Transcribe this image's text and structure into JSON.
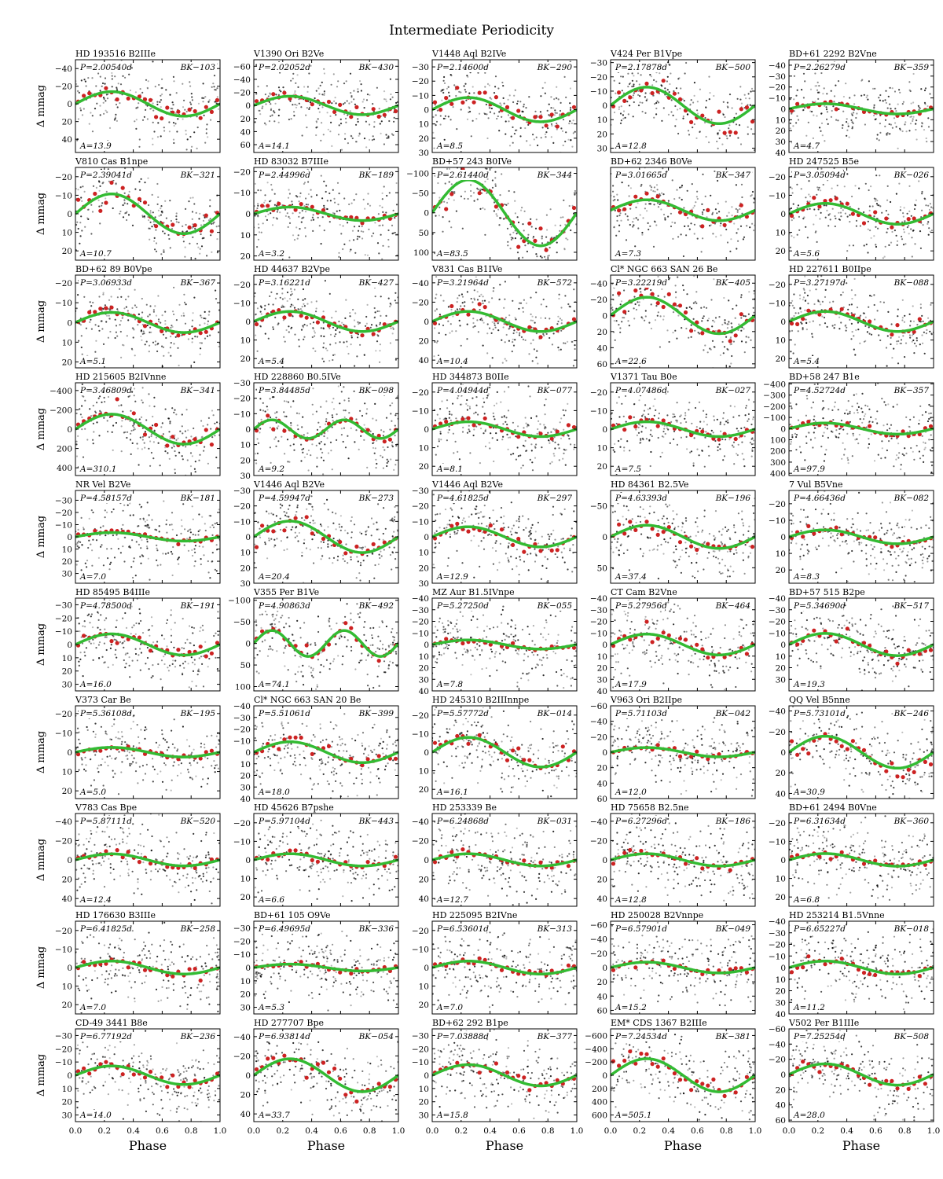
{
  "figure": {
    "title": "Intermediate Periodicity",
    "ylabel": "Δ mmag",
    "xlabel": "Phase",
    "x_ticks": [
      "0.0",
      "0.2",
      "0.4",
      "0.6",
      "0.8",
      "1.0"
    ],
    "colors": {
      "points": "#000000",
      "binned": "#cc2222",
      "fit": "#33bb33",
      "frame": "#000000"
    }
  },
  "chart_data": [
    {
      "type": "scatter",
      "title": "HD 193516  B2IIIe",
      "period": "P=2.00540d",
      "id": "BK−103",
      "amp": "A=13.9",
      "A": 13.9,
      "harm": 1,
      "yticks": [
        -40,
        -20,
        0,
        20,
        40
      ],
      "ylim": [
        -50,
        55
      ]
    },
    {
      "type": "scatter",
      "title": "V1390 Ori  B2Ve",
      "period": "P=2.02052d",
      "id": "BK−430",
      "amp": "A=14.1",
      "A": 14.1,
      "harm": 1,
      "yticks": [
        -60,
        -40,
        -20,
        0,
        20,
        40,
        60
      ],
      "ylim": [
        -70,
        72
      ]
    },
    {
      "type": "scatter",
      "title": "V1448 Aql  B2IVe",
      "period": "P=2.14600d",
      "id": "BK−290",
      "amp": "A=8.5",
      "A": 8.5,
      "harm": 1,
      "yticks": [
        -30,
        -20,
        -10,
        0,
        10,
        20,
        30
      ],
      "ylim": [
        -35,
        30
      ]
    },
    {
      "type": "scatter",
      "title": "V424 Per  B1Vpe",
      "period": "P=2.17878d",
      "id": "BK−500",
      "amp": "A=12.8",
      "A": 12.8,
      "harm": 1,
      "yticks": [
        -30,
        -20,
        -10,
        0,
        10,
        20,
        30
      ],
      "ylim": [
        -32,
        33
      ]
    },
    {
      "type": "scatter",
      "title": "BD+61 2292  B2Vne",
      "period": "P=2.26279d",
      "id": "BK−359",
      "amp": "A=4.7",
      "A": 4.7,
      "harm": 1,
      "yticks": [
        -40,
        -30,
        -20,
        -10,
        0,
        10,
        20,
        30,
        40
      ],
      "ylim": [
        -45,
        40
      ]
    },
    {
      "type": "scatter",
      "title": "V810 Cas  B1npe",
      "period": "P=2.39041d",
      "id": "BK−321",
      "amp": "A=10.7",
      "A": 10.7,
      "harm": 1,
      "yticks": [
        -20,
        -10,
        0,
        10,
        20
      ],
      "ylim": [
        -25,
        25
      ]
    },
    {
      "type": "scatter",
      "title": "HD 83032  B7IIIe",
      "period": "P=2.44996d",
      "id": "BK−189",
      "amp": "A=3.2",
      "A": 3.2,
      "harm": 1,
      "yticks": [
        -20,
        -10,
        0,
        10,
        20
      ],
      "ylim": [
        -22,
        22
      ]
    },
    {
      "type": "scatter",
      "title": "BD+57 243  B0IVe",
      "period": "P=2.61440d",
      "id": "BK−344",
      "amp": "A=83.5",
      "A": 83.5,
      "harm": 1,
      "yticks": [
        -100,
        -50,
        0,
        50,
        100
      ],
      "ylim": [
        -115,
        120
      ]
    },
    {
      "type": "scatter",
      "title": "BD+62 2346  B0Ve",
      "period": "P=3.01665d",
      "id": "BK−347",
      "amp": "A=7.3",
      "A": 7.3,
      "harm": 1,
      "yticks": [],
      "ylim": [
        -30,
        35
      ]
    },
    {
      "type": "scatter",
      "title": "HD 247525  B5e",
      "period": "P=3.05094d",
      "id": "BK−026",
      "amp": "A=5.6",
      "A": 5.6,
      "harm": 1,
      "yticks": [
        -20,
        -10,
        0,
        10,
        20
      ],
      "ylim": [
        -25,
        25
      ]
    },
    {
      "type": "scatter",
      "title": "BD+62 89  B0Vpe",
      "period": "P=3.06933d",
      "id": "BK−367",
      "amp": "A=5.1",
      "A": 5.1,
      "harm": 1,
      "yticks": [
        -20,
        -10,
        0,
        10,
        20
      ],
      "ylim": [
        -24,
        23
      ]
    },
    {
      "type": "scatter",
      "title": "HD 44637  B2Vpe",
      "period": "P=3.16221d",
      "id": "BK−427",
      "amp": "A=5.4",
      "A": 5.4,
      "harm": 1,
      "yticks": [
        -20,
        -10,
        0,
        10,
        20
      ],
      "ylim": [
        -25,
        25
      ]
    },
    {
      "type": "scatter",
      "title": "V831 Cas  B1IVe",
      "period": "P=3.21964d",
      "id": "BK−572",
      "amp": "A=10.4",
      "A": 10.4,
      "harm": 1,
      "yticks": [
        -40,
        -20,
        0,
        20,
        40
      ],
      "ylim": [
        -48,
        48
      ]
    },
    {
      "type": "scatter",
      "title": "Cl* NGC 663 SAN 26  Be",
      "period": "P=3.22219d",
      "id": "BK−405",
      "amp": "A=22.6",
      "A": 22.6,
      "harm": 1,
      "yticks": [
        -40,
        -20,
        0,
        20,
        40,
        60
      ],
      "ylim": [
        -50,
        65
      ]
    },
    {
      "type": "scatter",
      "title": "HD 227611  B0IIpe",
      "period": "P=3.27197d",
      "id": "BK−088",
      "amp": "A=5.4",
      "A": 5.4,
      "harm": 1,
      "yticks": [
        -20,
        -10,
        0,
        10,
        20
      ],
      "ylim": [
        -25,
        25
      ]
    },
    {
      "type": "scatter",
      "title": "HD 215605  B2IVnne",
      "period": "P=3.46809d",
      "id": "BK−341",
      "amp": "A=310.1",
      "A": 155,
      "harm": 1,
      "yticks": [
        -400,
        -200,
        0,
        200,
        400
      ],
      "ylim": [
        -480,
        480
      ]
    },
    {
      "type": "scatter",
      "title": "HD 228860  B0.5IVe",
      "period": "P=3.84485d",
      "id": "BK−098",
      "amp": "A=9.2",
      "A": 6,
      "harm": 2,
      "yticks": [
        -30,
        -20,
        -10,
        0,
        10,
        20,
        30
      ],
      "ylim": [
        -30,
        30
      ]
    },
    {
      "type": "scatter",
      "title": "HD 344873  B0IIe",
      "period": "P=4.04944d",
      "id": "BK−077",
      "amp": "A=8.1",
      "A": 4,
      "harm": 1,
      "yticks": [
        -20,
        -10,
        0,
        10,
        20
      ],
      "ylim": [
        -25,
        25
      ]
    },
    {
      "type": "scatter",
      "title": "V1371 Tau  B0e",
      "period": "P=4.07486d",
      "id": "BK−027",
      "amp": "A=7.5",
      "A": 4,
      "harm": 1,
      "yticks": [
        -20,
        -10,
        0,
        10,
        20
      ],
      "ylim": [
        -25,
        25
      ]
    },
    {
      "type": "scatter",
      "title": "BD+58 247  B1e",
      "period": "P=4.52724d",
      "id": "BK−357",
      "amp": "A=97.9",
      "A": 50,
      "harm": 1,
      "yticks": [
        -400,
        -300,
        -200,
        -100,
        0,
        100,
        200,
        300,
        400
      ],
      "ylim": [
        -410,
        420
      ]
    },
    {
      "type": "scatter",
      "title": "NR Vel  B2Ve",
      "period": "P=4.58157d",
      "id": "BK−181",
      "amp": "A=7.0",
      "A": 3.5,
      "harm": 1,
      "yticks": [
        -30,
        -20,
        -10,
        0,
        10,
        20,
        30
      ],
      "ylim": [
        -38,
        38
      ]
    },
    {
      "type": "scatter",
      "title": "V1446 Aql  B2Ve",
      "period": "P=4.59947d",
      "id": "BK−273",
      "amp": "A=20.4",
      "A": 10.2,
      "harm": 1,
      "yticks": [
        -30,
        -20,
        -10,
        0,
        10,
        20,
        30
      ],
      "ylim": [
        -30,
        30
      ]
    },
    {
      "type": "scatter",
      "title": "V1446 Aql  B2Ve",
      "period": "P=4.61825d",
      "id": "BK−297",
      "amp": "A=12.9",
      "A": 6.5,
      "harm": 1,
      "yticks": [
        -30,
        -20,
        -10,
        0,
        10,
        20,
        30
      ],
      "ylim": [
        -30,
        30
      ]
    },
    {
      "type": "scatter",
      "title": "HD 84361  B2.5Ve",
      "period": "P=4.63393d",
      "id": "BK−196",
      "amp": "A=37.4",
      "A": 18.7,
      "harm": 1,
      "yticks": [
        -50,
        0,
        50
      ],
      "ylim": [
        -75,
        75
      ]
    },
    {
      "type": "scatter",
      "title": "7 Vul  B5Vne",
      "period": "P=4.66436d",
      "id": "BK−082",
      "amp": "A=8.3",
      "A": 4.2,
      "harm": 1,
      "yticks": [
        -20,
        -10,
        0,
        10,
        20
      ],
      "ylim": [
        -28,
        28
      ]
    },
    {
      "type": "scatter",
      "title": "HD 85495  B4IIIe",
      "period": "P=4.78500d",
      "id": "BK−191",
      "amp": "A=16.0",
      "A": 8,
      "harm": 1,
      "yticks": [
        -30,
        -20,
        -10,
        0,
        10,
        20,
        30
      ],
      "ylim": [
        -35,
        35
      ]
    },
    {
      "type": "scatter",
      "title": "V355 Per  B1Ve",
      "period": "P=4.90863d",
      "id": "BK−492",
      "amp": "A=74.1",
      "A": 30,
      "harm": 2,
      "yticks": [
        -100,
        -50,
        0,
        50,
        100
      ],
      "ylim": [
        -105,
        110
      ]
    },
    {
      "type": "scatter",
      "title": "MZ Aur  B1.5IVnpe",
      "period": "P=5.27250d",
      "id": "BK−055",
      "amp": "A=7.8",
      "A": 3.9,
      "harm": 1,
      "yticks": [
        -40,
        -30,
        -20,
        -10,
        0,
        10,
        20,
        30,
        40
      ],
      "ylim": [
        -40,
        40
      ]
    },
    {
      "type": "scatter",
      "title": "CT Cam  B2Vne",
      "period": "P=5.27956d",
      "id": "BK−464",
      "amp": "A=17.9",
      "A": 9,
      "harm": 1,
      "yticks": [
        -40,
        -30,
        -20,
        -10,
        0,
        10,
        20,
        30,
        40
      ],
      "ylim": [
        -40,
        40
      ]
    },
    {
      "type": "scatter",
      "title": "BD+57 515  B2pe",
      "period": "P=5.34690d",
      "id": "BK−517",
      "amp": "A=19.3",
      "A": 9.6,
      "harm": 1,
      "yticks": [
        -40,
        -30,
        -20,
        -10,
        0,
        10,
        20,
        30
      ],
      "ylim": [
        -40,
        40
      ]
    },
    {
      "type": "scatter",
      "title": "V373 Car  Be",
      "period": "P=5.36108d",
      "id": "BK−195",
      "amp": "A=5.0",
      "A": 2.5,
      "harm": 1,
      "yticks": [
        -20,
        -10,
        0,
        10,
        20
      ],
      "ylim": [
        -24,
        24
      ]
    },
    {
      "type": "scatter",
      "title": "Cl* NGC 663 SAN 20  Be",
      "period": "P=5.51061d",
      "id": "BK−399",
      "amp": "A=18.0",
      "A": 9,
      "harm": 1,
      "yticks": [
        -40,
        -30,
        -20,
        -10,
        0,
        10,
        20,
        30,
        40
      ],
      "ylim": [
        -40,
        40
      ]
    },
    {
      "type": "scatter",
      "title": "HD 245310  B2IIInnpe",
      "period": "P=5.57772d",
      "id": "BK−014",
      "amp": "A=16.1",
      "A": 8,
      "harm": 1,
      "yticks": [
        -20,
        -10,
        0,
        10,
        20
      ],
      "ylim": [
        -25,
        25
      ]
    },
    {
      "type": "scatter",
      "title": "V963 Ori  B2IIpe",
      "period": "P=5.71103d",
      "id": "BK−042",
      "amp": "A=12.0",
      "A": 6,
      "harm": 1,
      "yticks": [
        -60,
        -40,
        -20,
        0,
        20,
        40,
        60
      ],
      "ylim": [
        -60,
        60
      ]
    },
    {
      "type": "scatter",
      "title": "QQ Vel  B5nne",
      "period": "P=5.73101d",
      "id": "BK−246",
      "amp": "A=30.9",
      "A": 15.5,
      "harm": 1,
      "yticks": [
        -40,
        -20,
        0,
        20,
        40
      ],
      "ylim": [
        -45,
        45
      ]
    },
    {
      "type": "scatter",
      "title": "V783 Cas  Bpe",
      "period": "P=5.87111d",
      "id": "BK−520",
      "amp": "A=12.4",
      "A": 6.2,
      "harm": 1,
      "yticks": [
        -40,
        -20,
        0,
        20,
        40
      ],
      "ylim": [
        -48,
        48
      ]
    },
    {
      "type": "scatter",
      "title": "HD 45626  B7pshe",
      "period": "P=5.97104d",
      "id": "BK−443",
      "amp": "A=6.6",
      "A": 3.3,
      "harm": 1,
      "yticks": [
        -20,
        -10,
        0,
        10,
        20
      ],
      "ylim": [
        -25,
        25
      ]
    },
    {
      "type": "scatter",
      "title": "HD 253339  Be",
      "period": "P=6.24868d",
      "id": "BK−031",
      "amp": "A=12.7",
      "A": 6.3,
      "harm": 1,
      "yticks": [
        -40,
        -20,
        0,
        20,
        40
      ],
      "ylim": [
        -48,
        48
      ]
    },
    {
      "type": "scatter",
      "title": "HD 75658  B2.5ne",
      "period": "P=6.27296d",
      "id": "BK−186",
      "amp": "A=12.8",
      "A": 6.4,
      "harm": 1,
      "yticks": [
        -40,
        -20,
        0,
        20,
        40
      ],
      "ylim": [
        -48,
        48
      ]
    },
    {
      "type": "scatter",
      "title": "BD+61 2494  B0Vne",
      "period": "P=6.31634d",
      "id": "BK−360",
      "amp": "A=6.8",
      "A": 3.4,
      "harm": 1,
      "yticks": [
        -20,
        -10,
        0,
        10,
        20
      ],
      "ylim": [
        -25,
        25
      ]
    },
    {
      "type": "scatter",
      "title": "HD 176630  B3IIIe",
      "period": "P=6.41825d",
      "id": "BK−258",
      "amp": "A=7.0",
      "A": 3.5,
      "harm": 1,
      "yticks": [
        -20,
        -10,
        0,
        10,
        20
      ],
      "ylim": [
        -25,
        25
      ]
    },
    {
      "type": "scatter",
      "title": "BD+61 105  O9Ve",
      "period": "P=6.49695d",
      "id": "BK−336",
      "amp": "A=5.3",
      "A": 2.6,
      "harm": 1,
      "yticks": [
        -30,
        -20,
        -10,
        0,
        10,
        20,
        30
      ],
      "ylim": [
        -35,
        35
      ]
    },
    {
      "type": "scatter",
      "title": "HD 225095  B2IVne",
      "period": "P=6.53601d",
      "id": "BK−313",
      "amp": "A=7.0",
      "A": 3.5,
      "harm": 1,
      "yticks": [
        -20,
        -10,
        0,
        10,
        20
      ],
      "ylim": [
        -25,
        25
      ]
    },
    {
      "type": "scatter",
      "title": "HD 250028  B2Vnnpe",
      "period": "P=6.57901d",
      "id": "BK−049",
      "amp": "A=15.2",
      "A": 7.6,
      "harm": 1,
      "yticks": [
        -60,
        -40,
        -20,
        0,
        20,
        40,
        60
      ],
      "ylim": [
        -65,
        65
      ]
    },
    {
      "type": "scatter",
      "title": "HD 253214  B1.5Vnne",
      "period": "P=6.65227d",
      "id": "BK−018",
      "amp": "A=11.2",
      "A": 5.6,
      "harm": 1,
      "yticks": [
        -40,
        -30,
        -20,
        -10,
        0,
        10,
        20,
        30,
        40
      ],
      "ylim": [
        -40,
        40
      ]
    },
    {
      "type": "scatter",
      "title": "CD-49 3441  B8e",
      "period": "P=6.77192d",
      "id": "BK−236",
      "amp": "A=14.0",
      "A": 7,
      "harm": 1,
      "yticks": [
        -30,
        -20,
        -10,
        0,
        10,
        20,
        30
      ],
      "ylim": [
        -35,
        35
      ]
    },
    {
      "type": "scatter",
      "title": "HD 277707  Bpe",
      "period": "P=6.93814d",
      "id": "BK−054",
      "amp": "A=33.7",
      "A": 17,
      "harm": 1,
      "yticks": [
        -40,
        -20,
        0,
        20,
        40
      ],
      "ylim": [
        -48,
        48
      ]
    },
    {
      "type": "scatter",
      "title": "BD+62 292  B1pe",
      "period": "P=7.03888d",
      "id": "BK−377",
      "amp": "A=15.8",
      "A": 8,
      "harm": 1,
      "yticks": [
        -30,
        -20,
        -10,
        0,
        10,
        20,
        30
      ],
      "ylim": [
        -35,
        35
      ]
    },
    {
      "type": "scatter",
      "title": "EM* CDS 1367  B2IIIe",
      "period": "P=7.24534d",
      "id": "BK−381",
      "amp": "A=505.1",
      "A": 250,
      "harm": 1,
      "yticks": [
        -600,
        -400,
        -200,
        0,
        200,
        400,
        600
      ],
      "ylim": [
        -700,
        700
      ]
    },
    {
      "type": "scatter",
      "title": "V502 Per  B1IIIe",
      "period": "P=7.25254d",
      "id": "BK−508",
      "amp": "A=28.0",
      "A": 14,
      "harm": 1,
      "yticks": [
        -60,
        -40,
        -20,
        0,
        20,
        40,
        60
      ],
      "ylim": [
        -60,
        62
      ]
    }
  ]
}
